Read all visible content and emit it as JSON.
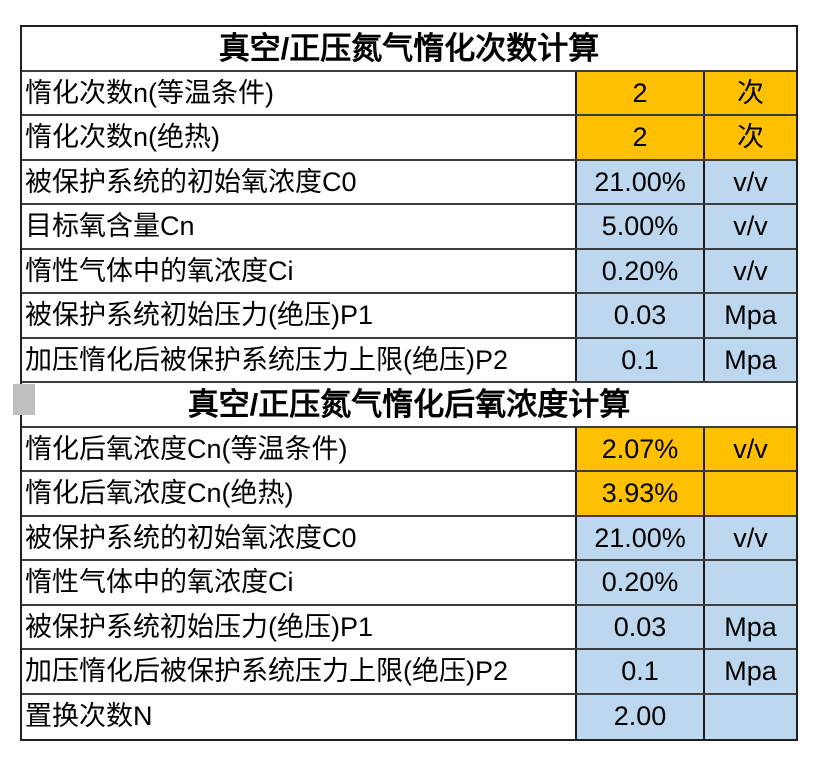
{
  "colors": {
    "result_orange": "#FFC000",
    "input_blue": "#BDD7EE",
    "grid_border": "#3D3D3D",
    "outer_border": "#1F1F1F",
    "text": "#000000",
    "marker_gray": "#BFBFBF"
  },
  "table": {
    "sections": [
      {
        "title": "真空/正压氮气惰化次数计算",
        "rows": [
          {
            "label": "惰化次数n(等温条件)",
            "value": "2",
            "unit": "次",
            "style": "orange"
          },
          {
            "label": "惰化次数n(绝热)",
            "value": "2",
            "unit": "次",
            "style": "orange"
          },
          {
            "label": "被保护系统的初始氧浓度C0",
            "value": "21.00%",
            "unit": "v/v",
            "style": "blue"
          },
          {
            "label": "目标氧含量Cn",
            "value": "5.00%",
            "unit": "v/v",
            "style": "blue"
          },
          {
            "label": "惰性气体中的氧浓度Ci",
            "value": "0.20%",
            "unit": "v/v",
            "style": "blue"
          },
          {
            "label": "被保护系统初始压力(绝压)P1",
            "value": "0.03",
            "unit": "Mpa",
            "style": "blue"
          },
          {
            "label": "加压惰化后被保护系统压力上限(绝压)P2",
            "value": "0.1",
            "unit": "Mpa",
            "style": "blue"
          }
        ]
      },
      {
        "title": "真空/正压氮气惰化后氧浓度计算",
        "rows": [
          {
            "label": "惰化后氧浓度Cn(等温条件)",
            "value": "2.07%",
            "unit": "v/v",
            "style": "orange"
          },
          {
            "label": "惰化后氧浓度Cn(绝热)",
            "value": "3.93%",
            "unit": "",
            "style": "orange"
          },
          {
            "label": "被保护系统的初始氧浓度C0",
            "value": "21.00%",
            "unit": "v/v",
            "style": "blue"
          },
          {
            "label": "惰性气体中的氧浓度Ci",
            "value": "0.20%",
            "unit": "",
            "style": "blue"
          },
          {
            "label": "被保护系统初始压力(绝压)P1",
            "value": "0.03",
            "unit": "Mpa",
            "style": "blue"
          },
          {
            "label": "加压惰化后被保护系统压力上限(绝压)P2",
            "value": "0.1",
            "unit": "Mpa",
            "style": "blue"
          },
          {
            "label": "置换次数N",
            "value": "2.00",
            "unit": "",
            "style": "blue"
          }
        ]
      }
    ]
  }
}
